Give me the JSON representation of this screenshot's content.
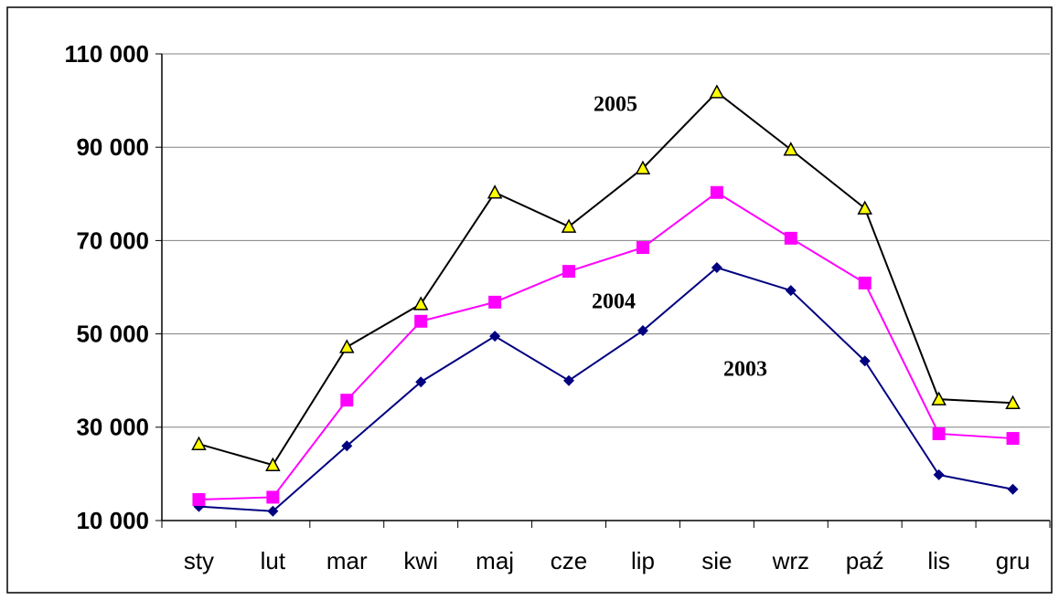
{
  "chart_data": {
    "type": "line",
    "categories": [
      "sty",
      "lut",
      "mar",
      "kwi",
      "maj",
      "cze",
      "lip",
      "sie",
      "wrz",
      "paź",
      "lis",
      "gru"
    ],
    "series": [
      {
        "name": "2003",
        "color": "#000080",
        "marker": "diamond",
        "values": [
          13000,
          12000,
          26000,
          39700,
          49500,
          40000,
          50700,
          64200,
          59300,
          44200,
          19800,
          16700
        ]
      },
      {
        "name": "2004",
        "color": "#ff00ff",
        "marker": "square",
        "values": [
          14500,
          15000,
          35800,
          52700,
          56800,
          63400,
          68500,
          80300,
          70500,
          60900,
          28600,
          27600
        ]
      },
      {
        "name": "2005",
        "color": "#000000",
        "marker": "triangle",
        "marker_fill": "#ffff00",
        "values": [
          26400,
          21900,
          47200,
          56400,
          80300,
          73000,
          85500,
          101800,
          89500,
          76900,
          36000,
          35200
        ]
      }
    ],
    "ylim": [
      10000,
      110000
    ],
    "yticks": [
      {
        "value": 10000,
        "label": "10 000"
      },
      {
        "value": 30000,
        "label": "30 000"
      },
      {
        "value": 50000,
        "label": "50 000"
      },
      {
        "value": 70000,
        "label": "70 000"
      },
      {
        "value": 90000,
        "label": "90 000"
      },
      {
        "value": 110000,
        "label": "110 000"
      }
    ],
    "grid": true
  }
}
